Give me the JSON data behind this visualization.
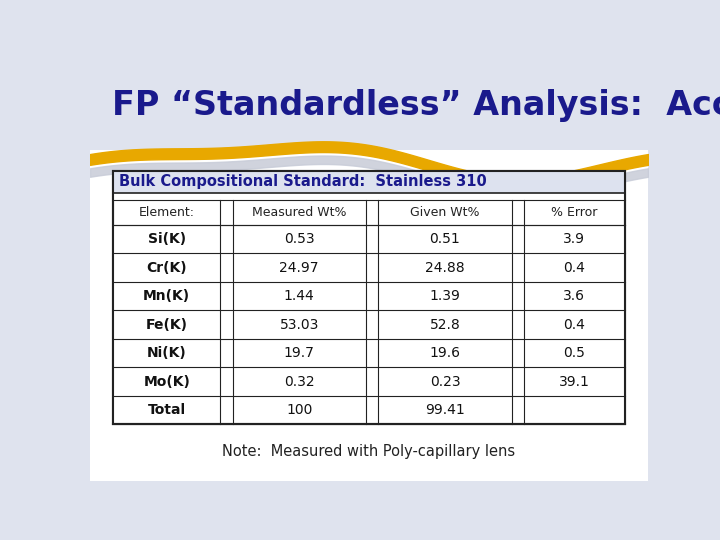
{
  "title": "FP “Standardless” Analysis:  Accuracy",
  "title_color": "#1a1a8c",
  "subtitle": "Bulk Compositional Standard:  Stainless 310",
  "note": "Note:  Measured with Poly-capillary lens",
  "col_headers": [
    "Element:",
    "Measured Wt%",
    "Given Wt%",
    "% Error"
  ],
  "rows": [
    [
      "Si(K)",
      "0.53",
      "0.51",
      "3.9"
    ],
    [
      "Cr(K)",
      "24.97",
      "24.88",
      "0.4"
    ],
    [
      "Mn(K)",
      "1.44",
      "1.39",
      "3.6"
    ],
    [
      "Fe(K)",
      "53.03",
      "52.8",
      "0.4"
    ],
    [
      "Ni(K)",
      "19.7",
      "19.6",
      "0.5"
    ],
    [
      "Mo(K)",
      "0.32",
      "0.23",
      "39.1"
    ],
    [
      "Total",
      "100",
      "99.41",
      ""
    ]
  ],
  "slide_bg": "#dfe3ee",
  "white_bg": "#ffffff",
  "subtitle_bg": "#dde2ef",
  "title_area_bg": "#dfe3ee",
  "gold_color": "#e8a800",
  "silver_color": "#c8ccd8",
  "border_color": "#222222",
  "header_text_color": "#1a1a8c",
  "element_text_color": "#111111",
  "data_text_color": "#222222",
  "note_color": "#222222"
}
